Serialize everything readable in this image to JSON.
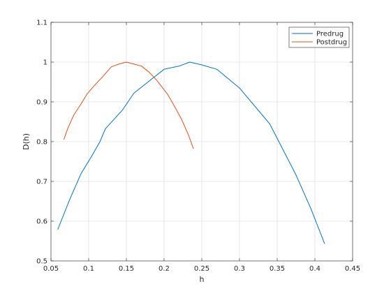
{
  "chart_data": {
    "type": "line",
    "title": "",
    "xlabel": "h",
    "ylabel": "D(h)",
    "xlim": [
      0.05,
      0.45
    ],
    "ylim": [
      0.5,
      1.1
    ],
    "grid": true,
    "legend_position": "top-right",
    "x_tick_labels": [
      "0.05",
      "0.1",
      "0.15",
      "0.2",
      "0.25",
      "0.3",
      "0.35",
      "0.4",
      "0.45"
    ],
    "y_tick_labels": [
      "0.5",
      "0.6",
      "0.7",
      "0.8",
      "0.9",
      "1",
      "1.1"
    ],
    "series": [
      {
        "name": "Predrug",
        "color": "#0072BD",
        "x": [
          0.059,
          0.075,
          0.09,
          0.103,
          0.115,
          0.122,
          0.145,
          0.16,
          0.18,
          0.2,
          0.22,
          0.234,
          0.25,
          0.27,
          0.3,
          0.34,
          0.375,
          0.395,
          0.413
        ],
        "y": [
          0.579,
          0.655,
          0.72,
          0.76,
          0.8,
          0.832,
          0.88,
          0.922,
          0.952,
          0.982,
          0.99,
          1.0,
          0.993,
          0.982,
          0.935,
          0.845,
          0.716,
          0.63,
          0.543
        ]
      },
      {
        "name": "Postdrug",
        "color": "#D95319",
        "x": [
          0.067,
          0.072,
          0.08,
          0.09,
          0.098,
          0.107,
          0.118,
          0.13,
          0.14,
          0.15,
          0.16,
          0.17,
          0.18,
          0.19,
          0.205,
          0.214,
          0.223,
          0.232,
          0.239
        ],
        "y": [
          0.805,
          0.832,
          0.866,
          0.895,
          0.92,
          0.94,
          0.962,
          0.988,
          0.995,
          1.0,
          0.995,
          0.99,
          0.975,
          0.955,
          0.918,
          0.888,
          0.857,
          0.818,
          0.782
        ]
      }
    ]
  }
}
